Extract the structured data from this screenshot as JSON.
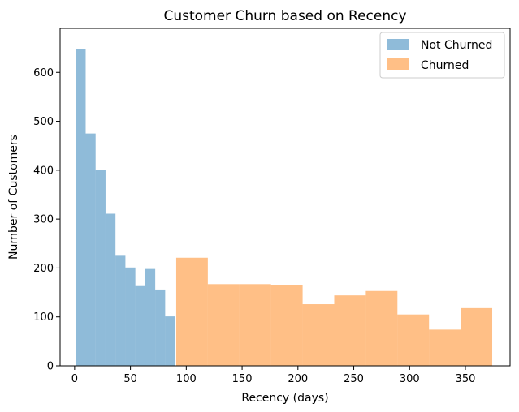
{
  "chart_data": {
    "type": "histogram",
    "title": "Customer Churn based on Recency",
    "xlabel": "Recency (days)",
    "ylabel": "Number of Customers",
    "xlim": [
      -13,
      390
    ],
    "ylim": [
      0,
      690
    ],
    "xticks": [
      0,
      50,
      100,
      150,
      200,
      250,
      300,
      350
    ],
    "yticks": [
      0,
      100,
      200,
      300,
      400,
      500,
      600
    ],
    "grid": false,
    "legend_position": "top-right",
    "series": [
      {
        "name": "Not Churned",
        "color": "#1f77b4",
        "opacity": 0.5,
        "bin_edges": [
          1,
          9.9,
          18.8,
          27.7,
          36.6,
          45.5,
          54.4,
          63.3,
          72.2,
          81.1,
          90
        ],
        "values": [
          648,
          475,
          401,
          311,
          225,
          201,
          163,
          198,
          156,
          101
        ]
      },
      {
        "name": "Churned",
        "color": "#ff7f0e",
        "opacity": 0.5,
        "bin_edges": [
          91,
          119.3,
          147.6,
          175.9,
          204.2,
          232.5,
          260.8,
          289.1,
          317.4,
          345.7,
          374
        ],
        "values": [
          221,
          167,
          167,
          165,
          126,
          144,
          153,
          105,
          74,
          118
        ]
      }
    ]
  }
}
